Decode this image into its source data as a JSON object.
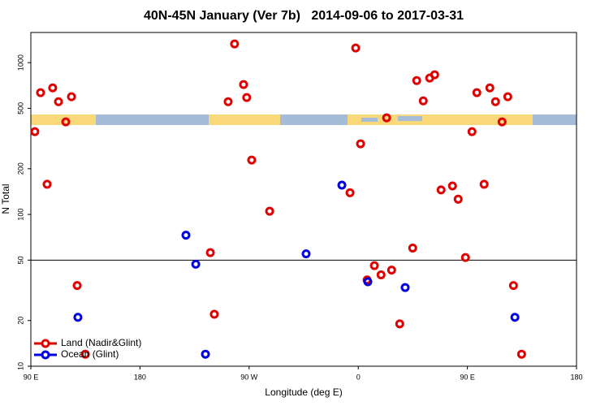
{
  "chart_data": {
    "type": "scatter",
    "title": "40N-45N January (Ver 7b)   2014-09-06 to 2017-03-31",
    "xlabel": "Longitude (deg E)",
    "ylabel": "N Total",
    "xlim": [
      90,
      540
    ],
    "ylim": [
      10,
      1580
    ],
    "log_y": true,
    "xticks": [
      {
        "value": 90,
        "label": "90 E"
      },
      {
        "value": 180,
        "label": "180"
      },
      {
        "value": 270,
        "label": "90 W"
      },
      {
        "value": 360,
        "label": "0"
      },
      {
        "value": 450,
        "label": "90 E"
      },
      {
        "value": 540,
        "label": "180"
      }
    ],
    "yticks": [
      10,
      20,
      50,
      100,
      200,
      500,
      1000
    ],
    "hline": 50,
    "legend": "bottom-left",
    "series": [
      {
        "name": "Land (Nadir&Glint)",
        "color": "#e00000",
        "x": [
          93.3,
          98,
          103.4,
          108,
          112.8,
          118.8,
          123.5,
          128.2,
          134.9,
          241.3,
          238,
          252.7,
          258,
          265.4,
          268,
          272.1,
          286.9,
          357.9,
          361.9,
          353.2,
          367.3,
          373.3,
          378.8,
          383.4,
          387.5,
          394.2,
          404.9,
          408.2,
          413.6,
          418.9,
          423,
          428.3,
          437.7,
          442.4,
          448.4,
          453.8,
          457.8,
          463.8,
          468.5,
          473.2,
          478.6,
          483.3,
          488,
          494.7
        ],
        "values": [
          351,
          634,
          158,
          682,
          553,
          407,
          596,
          34,
          12,
          22,
          56,
          553,
          1327,
          717,
          589,
          228,
          105,
          1248,
          292,
          139,
          37,
          46,
          40,
          433,
          43,
          19,
          60,
          762,
          560,
          791,
          831,
          145,
          154,
          126,
          52,
          351,
          634,
          158,
          682,
          553,
          407,
          596,
          34,
          12
        ]
      },
      {
        "name": "Ocean (Glint)",
        "color": "#0000e0",
        "x": [
          128.8,
          217.9,
          226,
          234,
          317,
          346.5,
          367.9,
          398.7,
          489.2
        ],
        "values": [
          21,
          73,
          47,
          12,
          55,
          156,
          36,
          33,
          21
        ]
      }
    ]
  }
}
